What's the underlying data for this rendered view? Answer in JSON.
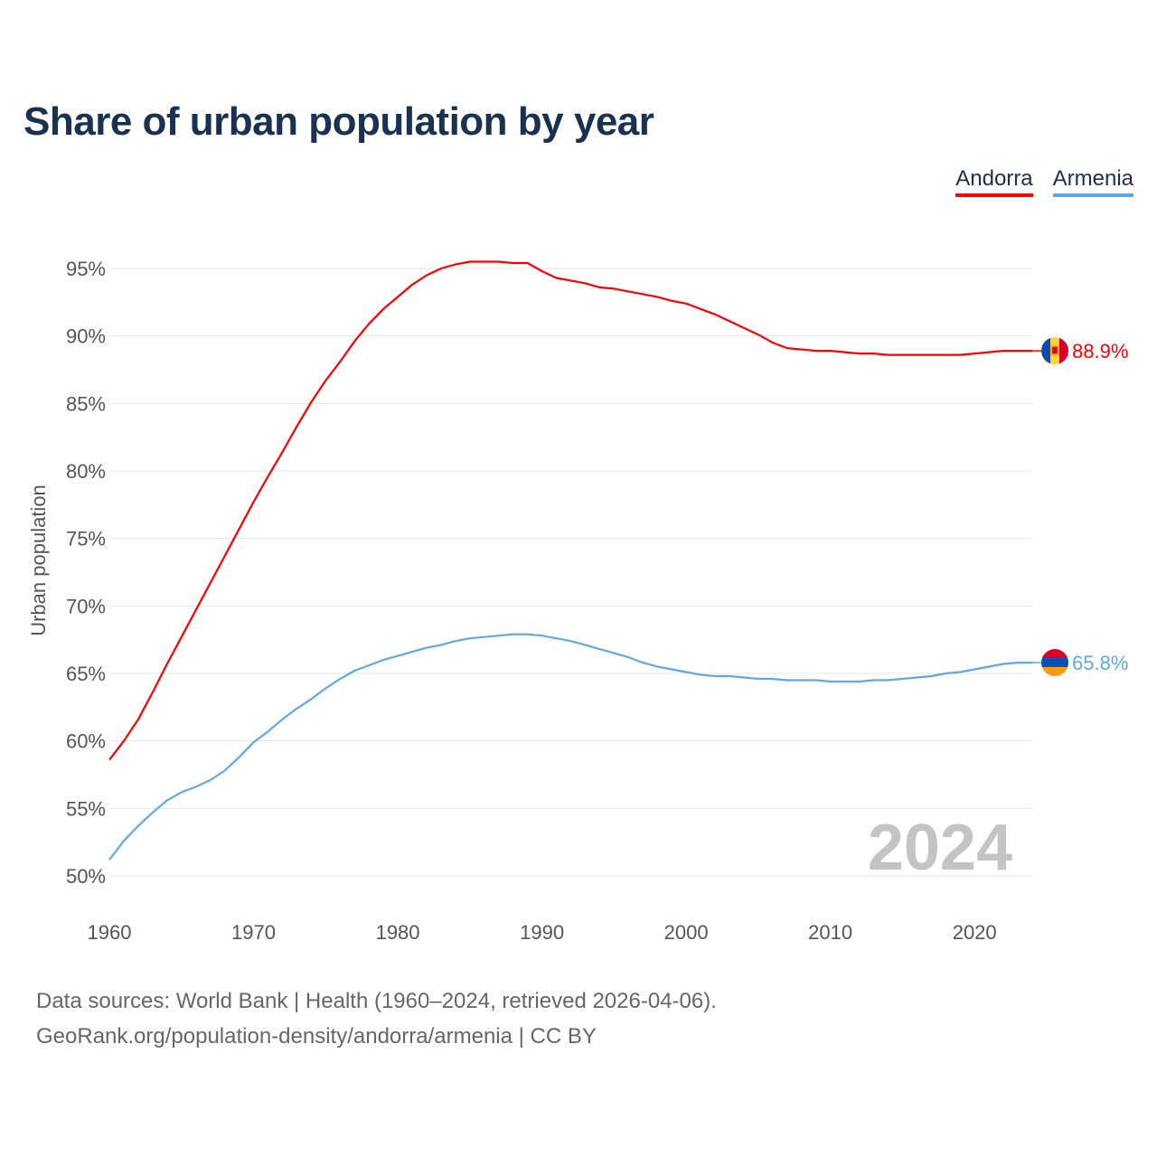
{
  "chart_data": {
    "type": "line",
    "title": "Share of urban population by year",
    "ylabel": "Urban population",
    "xlabel": "",
    "xlim": [
      1960,
      2024
    ],
    "ylim": [
      50,
      95
    ],
    "x_ticks": [
      1960,
      1970,
      1980,
      1990,
      2000,
      2010,
      2020
    ],
    "y_ticks": [
      "50%",
      "55%",
      "60%",
      "65%",
      "70%",
      "75%",
      "80%",
      "85%",
      "90%",
      "95%"
    ],
    "y_tick_values": [
      50,
      55,
      60,
      65,
      70,
      75,
      80,
      85,
      90,
      95
    ],
    "grid": true,
    "legend_position": "top-right",
    "year_watermark": "2024",
    "x": [
      1960,
      1961,
      1962,
      1963,
      1964,
      1965,
      1966,
      1967,
      1968,
      1969,
      1970,
      1971,
      1972,
      1973,
      1974,
      1975,
      1976,
      1977,
      1978,
      1979,
      1980,
      1981,
      1982,
      1983,
      1984,
      1985,
      1986,
      1987,
      1988,
      1989,
      1990,
      1991,
      1992,
      1993,
      1994,
      1995,
      1996,
      1997,
      1998,
      1999,
      2000,
      2001,
      2002,
      2003,
      2004,
      2005,
      2006,
      2007,
      2008,
      2009,
      2010,
      2011,
      2012,
      2013,
      2014,
      2015,
      2016,
      2017,
      2018,
      2019,
      2020,
      2021,
      2022,
      2023,
      2024
    ],
    "series": [
      {
        "name": "Andorra",
        "color": "#ff0000",
        "end_label": "88.9%",
        "flag": "andorra-flag",
        "values": [
          58.6,
          60.0,
          61.6,
          63.6,
          65.7,
          67.7,
          69.7,
          71.7,
          73.7,
          75.7,
          77.7,
          79.6,
          81.4,
          83.3,
          85.1,
          86.7,
          88.1,
          89.6,
          90.9,
          92.0,
          92.9,
          93.8,
          94.5,
          95.0,
          95.3,
          95.5,
          95.5,
          95.5,
          95.4,
          95.4,
          94.8,
          94.3,
          94.1,
          93.9,
          93.6,
          93.5,
          93.3,
          93.1,
          92.9,
          92.6,
          92.4,
          92.0,
          91.6,
          91.1,
          90.6,
          90.1,
          89.5,
          89.1,
          89.0,
          88.9,
          88.9,
          88.8,
          88.7,
          88.7,
          88.6,
          88.6,
          88.6,
          88.6,
          88.6,
          88.6,
          88.7,
          88.8,
          88.9,
          88.9,
          88.9
        ]
      },
      {
        "name": "Armenia",
        "color": "#5fa8ed",
        "end_label": "65.8%",
        "flag": "armenia-flag",
        "values": [
          51.2,
          52.6,
          53.7,
          54.7,
          55.6,
          56.2,
          56.6,
          57.1,
          57.8,
          58.8,
          59.9,
          60.7,
          61.6,
          62.4,
          63.1,
          63.9,
          64.6,
          65.2,
          65.6,
          66.0,
          66.3,
          66.6,
          66.9,
          67.1,
          67.4,
          67.6,
          67.7,
          67.8,
          67.9,
          67.9,
          67.8,
          67.6,
          67.4,
          67.1,
          66.8,
          66.5,
          66.2,
          65.8,
          65.5,
          65.3,
          65.1,
          64.9,
          64.8,
          64.8,
          64.7,
          64.6,
          64.6,
          64.5,
          64.5,
          64.5,
          64.4,
          64.4,
          64.4,
          64.5,
          64.5,
          64.6,
          64.7,
          64.8,
          65.0,
          65.1,
          65.3,
          65.5,
          65.7,
          65.8,
          65.8
        ]
      }
    ]
  },
  "footer": {
    "line1": "Data sources: World Bank | Health (1960–2024, retrieved 2026-04-06).",
    "line2": "GeoRank.org/population-density/andorra/armenia | CC BY"
  }
}
